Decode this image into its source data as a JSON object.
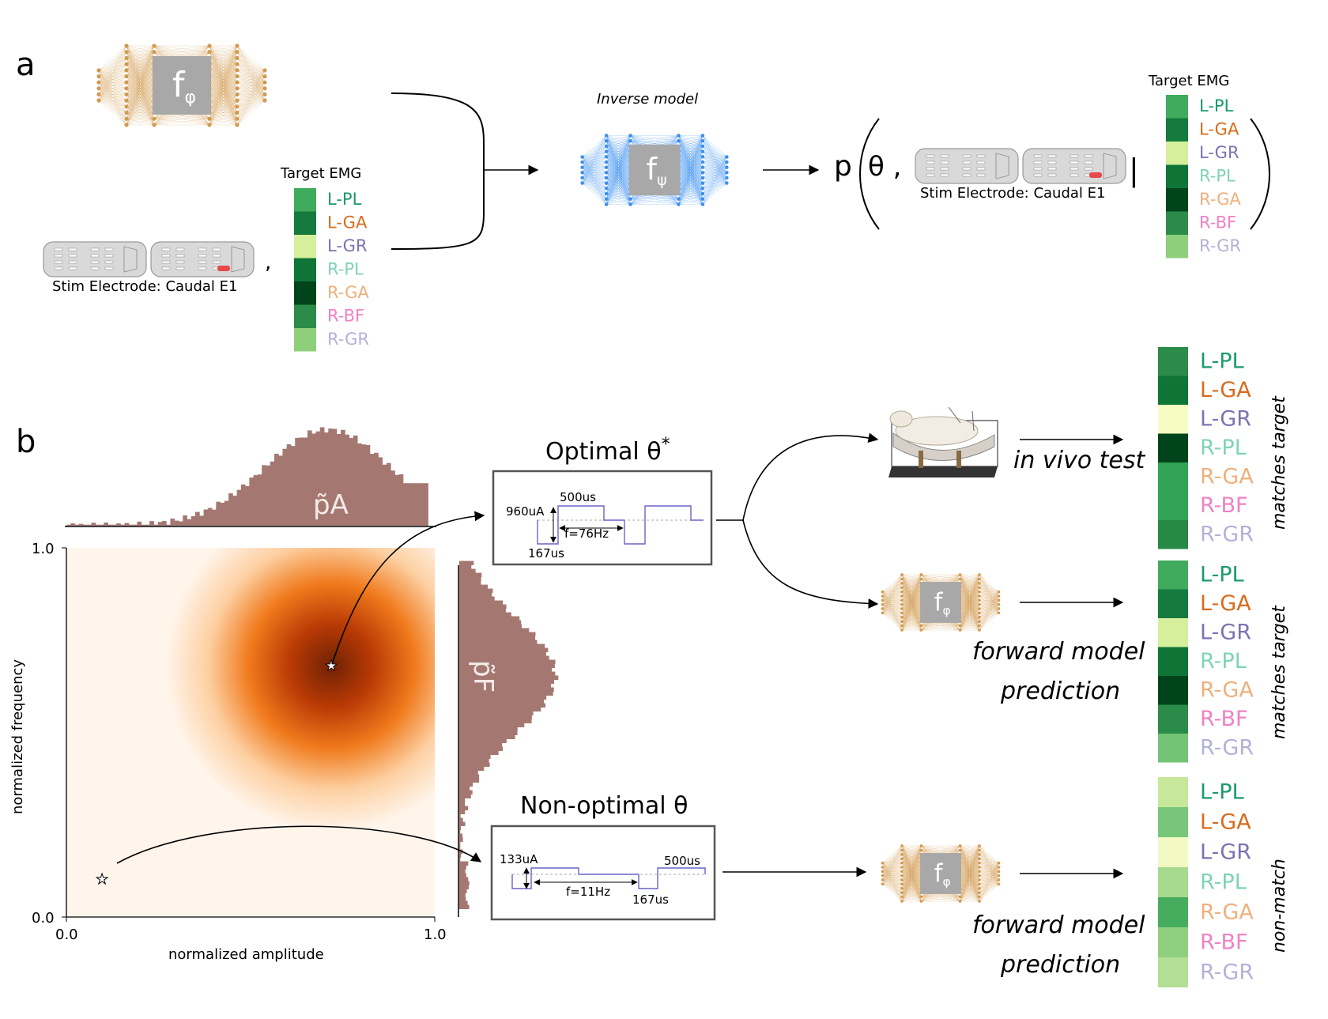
{
  "panel_a": {
    "letter": "a",
    "fwd_symbol": "f",
    "fwd_sub": "φ",
    "inv_symbol": "f",
    "inv_sub": "ψ",
    "inverse_label": "Inverse model",
    "target_title": "Target EMG",
    "electrode_caption": "Stim Electrode: Caudal E1",
    "comma": ",",
    "post_p": "p",
    "post_theta": "θ ,",
    "post_bar": "|",
    "muscles": [
      {
        "label": "L-PL",
        "text_color": "#1a9a6b",
        "cell": "#41ab5d"
      },
      {
        "label": "L-GA",
        "text_color": "#d96b1c",
        "cell": "#157a3e"
      },
      {
        "label": "L-GR",
        "text_color": "#7c72b3",
        "cell": "#d5ef9d"
      },
      {
        "label": "R-PL",
        "text_color": "#7fd3b8",
        "cell": "#0e7537"
      },
      {
        "label": "R-GA",
        "text_color": "#efb07c",
        "cell": "#00441b"
      },
      {
        "label": "R-BF",
        "text_color": "#ef82c4",
        "cell": "#2a8c48"
      },
      {
        "label": "R-GR",
        "text_color": "#b3b2d9",
        "cell": "#8ecf7c"
      }
    ]
  },
  "panel_b": {
    "letter": "b",
    "xlabel": "normalized amplitude",
    "ylabel": "normalized frequency",
    "xticks": [
      "0.0",
      "1.0"
    ],
    "yticks": [
      "0.0",
      "1.0"
    ],
    "pa_label": "p̃A",
    "pf_label": "p̃F",
    "optimal_title": "Optimal θ",
    "optimal_star": "*",
    "optimal_params": {
      "amp": "960uA",
      "width": "500us",
      "freq": "f=76Hz",
      "gap": "167us"
    },
    "optimal_point": {
      "amplitude": 0.72,
      "frequency": 0.68
    },
    "nonopt_title": "Non-optimal θ",
    "nonopt_params": {
      "amp": "133uA",
      "width": "500us",
      "freq": "f=11Hz",
      "gap": "167us"
    },
    "nonopt_point": {
      "amplitude": 0.1,
      "frequency": 0.1
    },
    "invivo_label": "in vivo test",
    "fwd_pred_line1": "forward model",
    "fwd_pred_line2": "prediction",
    "side_match1": "matches target",
    "side_match2": "matches target",
    "side_nonmatch": "non-match",
    "column1_cells": [
      "#2a8c48",
      "#0e7537",
      "#f7fcc4",
      "#00441b",
      "#31a354",
      "#31a354",
      "#268a44"
    ],
    "column2_cells": [
      "#41ab5d",
      "#157a3e",
      "#d5ef9d",
      "#0e7537",
      "#00441b",
      "#2a8c48",
      "#74c476"
    ],
    "column3_cells": [
      "#c7e89a",
      "#78c67a",
      "#f2f9c2",
      "#a6da8e",
      "#46ad5f",
      "#8fd07e",
      "#b3df95"
    ]
  }
}
